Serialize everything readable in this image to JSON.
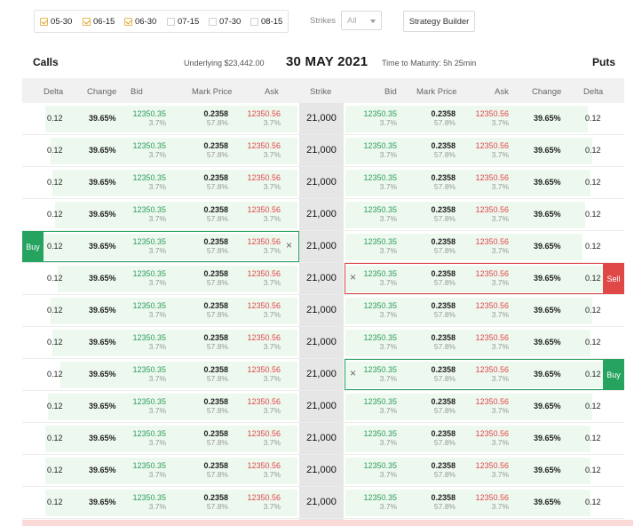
{
  "expiries": [
    {
      "label": "05-30",
      "checked": true
    },
    {
      "label": "06-15",
      "checked": true
    },
    {
      "label": "06-30",
      "checked": true
    },
    {
      "label": "07-15",
      "checked": false
    },
    {
      "label": "07-30",
      "checked": false
    },
    {
      "label": "08-15",
      "checked": false
    }
  ],
  "strikes_label": "Strikes",
  "strikes_value": "All",
  "strategy_button": "Strategy Builder",
  "calls_title": "Calls",
  "puts_title": "Puts",
  "underlying": "Underlying $23,442.00",
  "date_title": "30 MAY 2021",
  "maturity": "Time to Maturity: 5h 25min",
  "headers": {
    "call_delta": "Delta",
    "call_change": "Change",
    "call_bid": "Bid",
    "call_mark": "Mark Price",
    "call_ask": "Ask",
    "strike": "Strike",
    "put_bid": "Bid",
    "put_mark": "Mark Price",
    "put_ask": "Ask",
    "put_change": "Change",
    "put_delta": "Delta"
  },
  "buy_label": "Buy",
  "sell_label": "Sell",
  "close_glyph": "×",
  "colors": {
    "buy": "#27a360",
    "sell": "#e04848",
    "bid": "#2e9e5b",
    "ask": "#e04848"
  },
  "rows": [
    {
      "strike": "21,000",
      "call": {
        "delta": "0.12",
        "change": "39.65%",
        "bid": "12350.35",
        "bid_sub": "3.7%",
        "mark": "0.2358",
        "mark_sub": "57.8%",
        "ask": "12350.56",
        "ask_sub": "3.7%",
        "depth": 0.99
      },
      "put": {
        "delta": "0.12",
        "change": "39.65%",
        "bid": "12350.35",
        "bid_sub": "3.7%",
        "mark": "0.2358",
        "mark_sub": "57.8%",
        "ask": "12350.56",
        "ask_sub": "3.7%",
        "depth": 0.94
      },
      "call_action": null,
      "put_action": null
    },
    {
      "strike": "21,000",
      "call": {
        "delta": "0.12",
        "change": "39.65%",
        "bid": "12350.35",
        "bid_sub": "3.7%",
        "mark": "0.2358",
        "mark_sub": "57.8%",
        "ask": "12350.56",
        "ask_sub": "3.7%",
        "depth": 0.97
      },
      "put": {
        "delta": "0.12",
        "change": "39.65%",
        "bid": "12350.35",
        "bid_sub": "3.7%",
        "mark": "0.2358",
        "mark_sub": "57.8%",
        "ask": "12350.56",
        "ask_sub": "3.7%",
        "depth": 0.96
      },
      "call_action": null,
      "put_action": null
    },
    {
      "strike": "21,000",
      "call": {
        "delta": "0.12",
        "change": "39.65%",
        "bid": "12350.35",
        "bid_sub": "3.7%",
        "mark": "0.2358",
        "mark_sub": "57.8%",
        "ask": "12350.56",
        "ask_sub": "3.7%",
        "depth": 0.96
      },
      "put": {
        "delta": "0.12",
        "change": "39.65%",
        "bid": "12350.35",
        "bid_sub": "3.7%",
        "mark": "0.2358",
        "mark_sub": "57.8%",
        "ask": "12350.56",
        "ask_sub": "3.7%",
        "depth": 0.95
      },
      "call_action": null,
      "put_action": null
    },
    {
      "strike": "21,000",
      "call": {
        "delta": "0.12",
        "change": "39.65%",
        "bid": "12350.35",
        "bid_sub": "3.7%",
        "mark": "0.2358",
        "mark_sub": "57.8%",
        "ask": "12350.56",
        "ask_sub": "3.7%",
        "depth": 0.95
      },
      "put": {
        "delta": "0.12",
        "change": "39.65%",
        "bid": "12350.35",
        "bid_sub": "3.7%",
        "mark": "0.2358",
        "mark_sub": "57.8%",
        "ask": "12350.56",
        "ask_sub": "3.7%",
        "depth": 0.93
      },
      "call_action": null,
      "put_action": null
    },
    {
      "strike": "21,000",
      "call": {
        "delta": "0.12",
        "change": "39.65%",
        "bid": "12350.35",
        "bid_sub": "3.7%",
        "mark": "0.2358",
        "mark_sub": "57.8%",
        "ask": "12350.56",
        "ask_sub": "3.7%",
        "depth": 1.0
      },
      "put": {
        "delta": "0.12",
        "change": "39.65%",
        "bid": "12350.35",
        "bid_sub": "3.7%",
        "mark": "0.2358",
        "mark_sub": "57.8%",
        "ask": "12350.56",
        "ask_sub": "3.7%",
        "depth": 0.92
      },
      "call_action": "buy",
      "put_action": null
    },
    {
      "strike": "21,000",
      "call": {
        "delta": "0.12",
        "change": "39.65%",
        "bid": "12350.35",
        "bid_sub": "3.7%",
        "mark": "0.2358",
        "mark_sub": "57.8%",
        "ask": "12350.56",
        "ask_sub": "3.7%",
        "depth": 0.94
      },
      "put": {
        "delta": "0.12",
        "change": "39.65%",
        "bid": "12350.35",
        "bid_sub": "3.7%",
        "mark": "0.2358",
        "mark_sub": "57.8%",
        "ask": "12350.56",
        "ask_sub": "3.7%",
        "depth": 1.0
      },
      "call_action": null,
      "put_action": "sell"
    },
    {
      "strike": "21,000",
      "call": {
        "delta": "0.12",
        "change": "39.65%",
        "bid": "12350.35",
        "bid_sub": "3.7%",
        "mark": "0.2358",
        "mark_sub": "57.8%",
        "ask": "12350.56",
        "ask_sub": "3.7%",
        "depth": 0.97
      },
      "put": {
        "delta": "0.12",
        "change": "39.65%",
        "bid": "12350.35",
        "bid_sub": "3.7%",
        "mark": "0.2358",
        "mark_sub": "57.8%",
        "ask": "12350.56",
        "ask_sub": "3.7%",
        "depth": 0.96
      },
      "call_action": null,
      "put_action": null
    },
    {
      "strike": "21,000",
      "call": {
        "delta": "0.12",
        "change": "39.65%",
        "bid": "12350.35",
        "bid_sub": "3.7%",
        "mark": "0.2358",
        "mark_sub": "57.8%",
        "ask": "12350.56",
        "ask_sub": "3.7%",
        "depth": 0.96
      },
      "put": {
        "delta": "0.12",
        "change": "39.65%",
        "bid": "12350.35",
        "bid_sub": "3.7%",
        "mark": "0.2358",
        "mark_sub": "57.8%",
        "ask": "12350.56",
        "ask_sub": "3.7%",
        "depth": 0.95
      },
      "call_action": null,
      "put_action": null
    },
    {
      "strike": "21,000",
      "call": {
        "delta": "0.12",
        "change": "39.65%",
        "bid": "12350.35",
        "bid_sub": "3.7%",
        "mark": "0.2358",
        "mark_sub": "57.8%",
        "ask": "12350.56",
        "ask_sub": "3.7%",
        "depth": 0.93
      },
      "put": {
        "delta": "0.12",
        "change": "39.65%",
        "bid": "12350.35",
        "bid_sub": "3.7%",
        "mark": "0.2358",
        "mark_sub": "57.8%",
        "ask": "12350.56",
        "ask_sub": "3.7%",
        "depth": 1.0
      },
      "call_action": null,
      "put_action": "buy"
    },
    {
      "strike": "21,000",
      "call": {
        "delta": "0.12",
        "change": "39.65%",
        "bid": "12350.35",
        "bid_sub": "3.7%",
        "mark": "0.2358",
        "mark_sub": "57.8%",
        "ask": "12350.56",
        "ask_sub": "3.7%",
        "depth": 0.98
      },
      "put": {
        "delta": "0.12",
        "change": "39.65%",
        "bid": "12350.35",
        "bid_sub": "3.7%",
        "mark": "0.2358",
        "mark_sub": "57.8%",
        "ask": "12350.56",
        "ask_sub": "3.7%",
        "depth": 0.96
      },
      "call_action": null,
      "put_action": null
    },
    {
      "strike": "21,000",
      "call": {
        "delta": "0.12",
        "change": "39.65%",
        "bid": "12350.35",
        "bid_sub": "3.7%",
        "mark": "0.2358",
        "mark_sub": "57.8%",
        "ask": "12350.56",
        "ask_sub": "3.7%",
        "depth": 0.99
      },
      "put": {
        "delta": "0.12",
        "change": "39.65%",
        "bid": "12350.35",
        "bid_sub": "3.7%",
        "mark": "0.2358",
        "mark_sub": "57.8%",
        "ask": "12350.56",
        "ask_sub": "3.7%",
        "depth": 0.95
      },
      "call_action": null,
      "put_action": null
    },
    {
      "strike": "21,000",
      "call": {
        "delta": "0.12",
        "change": "39.65%",
        "bid": "12350.35",
        "bid_sub": "3.7%",
        "mark": "0.2358",
        "mark_sub": "57.8%",
        "ask": "12350.56",
        "ask_sub": "3.7%",
        "depth": 0.99
      },
      "put": {
        "delta": "0.12",
        "change": "39.65%",
        "bid": "12350.35",
        "bid_sub": "3.7%",
        "mark": "0.2358",
        "mark_sub": "57.8%",
        "ask": "12350.56",
        "ask_sub": "3.7%",
        "depth": 0.95
      },
      "call_action": null,
      "put_action": null
    },
    {
      "strike": "21,000",
      "call": {
        "delta": "0.12",
        "change": "39.65%",
        "bid": "12350.35",
        "bid_sub": "3.7%",
        "mark": "0.2358",
        "mark_sub": "57.8%",
        "ask": "12350.56",
        "ask_sub": "3.7%",
        "depth": 0.99
      },
      "put": {
        "delta": "0.12",
        "change": "39.65%",
        "bid": "12350.35",
        "bid_sub": "3.7%",
        "mark": "0.2358",
        "mark_sub": "57.8%",
        "ask": "12350.56",
        "ask_sub": "3.7%",
        "depth": 0.95
      },
      "call_action": null,
      "put_action": null
    }
  ]
}
